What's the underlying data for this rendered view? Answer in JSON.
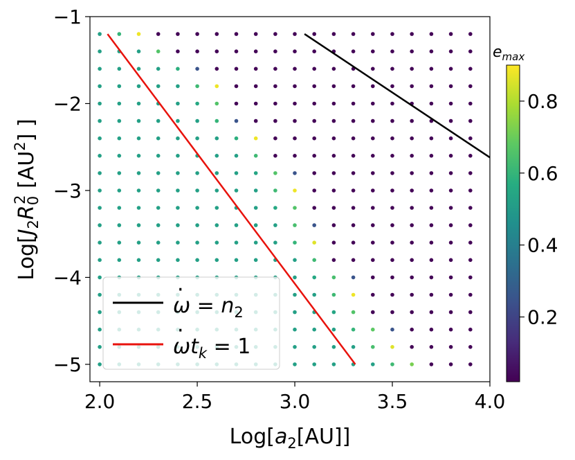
{
  "chart_data": {
    "type": "scatter",
    "xlabel_prefix": "Log[",
    "xlabel_var": "a",
    "xlabel_sub": "2",
    "xlabel_suffix": "[AU]]",
    "ylabel_prefix": "Log[",
    "ylabel_var": "J",
    "ylabel_sub": "2",
    "ylabel_var2": "R",
    "ylabel_sub2": "0",
    "ylabel_sup2": "2",
    "ylabel_mid": " [AU",
    "ylabel_sup": "2",
    "ylabel_suffix": "] ]",
    "xlim": [
      1.95,
      4.0
    ],
    "ylim": [
      -5.2,
      -1.0
    ],
    "xticks": [
      "2.0",
      "2.5",
      "3.0",
      "3.5",
      "4.0"
    ],
    "xtick_values": [
      2.0,
      2.5,
      3.0,
      3.5,
      4.0
    ],
    "yticks": [
      "−1",
      "−2",
      "−3",
      "−4",
      "−5"
    ],
    "ytick_values": [
      -1,
      -2,
      -3,
      -4,
      -5
    ],
    "grid": false,
    "colorbar": {
      "label_var": "e",
      "label_sub": "max",
      "range": [
        0.02,
        0.9
      ],
      "ticks": [
        "0.2",
        "0.4",
        "0.6",
        "0.8"
      ],
      "tick_values": [
        0.2,
        0.4,
        0.6,
        0.8
      ],
      "colormap": "viridis"
    },
    "x_grid": {
      "start": 2.0,
      "step": 0.1,
      "count": 20
    },
    "y_grid": {
      "start": -5.0,
      "step": 0.2,
      "count": 20
    },
    "points_note": "e_max on a 20x20 grid: rows from Log J2R0^2 = -5.0 (first) to -1.2 (last), columns from Log a2 = 2.0 to 3.9",
    "e_max_grid": [
      [
        0.52,
        0.52,
        0.52,
        0.52,
        0.52,
        0.52,
        0.52,
        0.52,
        0.52,
        0.52,
        0.52,
        0.52,
        0.52,
        0.52,
        0.52,
        0.62,
        0.72,
        0.03,
        0.03,
        0.03
      ],
      [
        0.52,
        0.52,
        0.52,
        0.52,
        0.52,
        0.52,
        0.52,
        0.52,
        0.52,
        0.52,
        0.52,
        0.52,
        0.52,
        0.52,
        0.64,
        0.86,
        0.03,
        0.03,
        0.03,
        0.03
      ],
      [
        0.52,
        0.52,
        0.52,
        0.52,
        0.52,
        0.52,
        0.52,
        0.52,
        0.52,
        0.52,
        0.52,
        0.52,
        0.52,
        0.6,
        0.68,
        0.25,
        0.03,
        0.03,
        0.03,
        0.03
      ],
      [
        0.52,
        0.52,
        0.52,
        0.52,
        0.52,
        0.52,
        0.52,
        0.52,
        0.52,
        0.52,
        0.52,
        0.52,
        0.54,
        0.66,
        0.03,
        0.03,
        0.03,
        0.03,
        0.03,
        0.03
      ],
      [
        0.52,
        0.52,
        0.52,
        0.52,
        0.52,
        0.52,
        0.52,
        0.52,
        0.52,
        0.52,
        0.52,
        0.52,
        0.62,
        0.88,
        0.03,
        0.03,
        0.03,
        0.03,
        0.03,
        0.03
      ],
      [
        0.52,
        0.52,
        0.52,
        0.52,
        0.52,
        0.52,
        0.52,
        0.52,
        0.52,
        0.52,
        0.52,
        0.55,
        0.64,
        0.25,
        0.03,
        0.03,
        0.03,
        0.03,
        0.03,
        0.03
      ],
      [
        0.52,
        0.52,
        0.52,
        0.52,
        0.52,
        0.52,
        0.52,
        0.52,
        0.52,
        0.52,
        0.52,
        0.62,
        0.03,
        0.03,
        0.03,
        0.03,
        0.03,
        0.03,
        0.03,
        0.03
      ],
      [
        0.52,
        0.52,
        0.52,
        0.52,
        0.52,
        0.52,
        0.52,
        0.52,
        0.52,
        0.52,
        0.6,
        0.86,
        0.03,
        0.03,
        0.03,
        0.03,
        0.03,
        0.03,
        0.03,
        0.03
      ],
      [
        0.52,
        0.52,
        0.52,
        0.52,
        0.52,
        0.52,
        0.52,
        0.52,
        0.52,
        0.52,
        0.64,
        0.25,
        0.03,
        0.03,
        0.03,
        0.03,
        0.03,
        0.03,
        0.03,
        0.03
      ],
      [
        0.52,
        0.52,
        0.52,
        0.52,
        0.52,
        0.52,
        0.52,
        0.52,
        0.52,
        0.55,
        0.66,
        0.03,
        0.03,
        0.03,
        0.03,
        0.03,
        0.03,
        0.03,
        0.03,
        0.03
      ],
      [
        0.52,
        0.52,
        0.52,
        0.52,
        0.52,
        0.52,
        0.52,
        0.52,
        0.52,
        0.62,
        0.88,
        0.03,
        0.03,
        0.03,
        0.03,
        0.03,
        0.03,
        0.03,
        0.03,
        0.03
      ],
      [
        0.52,
        0.52,
        0.52,
        0.52,
        0.52,
        0.52,
        0.52,
        0.52,
        0.54,
        0.66,
        0.25,
        0.03,
        0.03,
        0.03,
        0.03,
        0.03,
        0.03,
        0.03,
        0.03,
        0.03
      ],
      [
        0.52,
        0.52,
        0.52,
        0.52,
        0.52,
        0.52,
        0.52,
        0.52,
        0.62,
        0.03,
        0.03,
        0.03,
        0.03,
        0.03,
        0.03,
        0.03,
        0.03,
        0.03,
        0.03,
        0.03
      ],
      [
        0.52,
        0.52,
        0.52,
        0.52,
        0.52,
        0.52,
        0.52,
        0.58,
        0.88,
        0.03,
        0.03,
        0.03,
        0.03,
        0.03,
        0.03,
        0.03,
        0.03,
        0.03,
        0.03,
        0.03
      ],
      [
        0.52,
        0.52,
        0.52,
        0.52,
        0.52,
        0.52,
        0.6,
        0.25,
        0.03,
        0.03,
        0.03,
        0.03,
        0.03,
        0.03,
        0.03,
        0.03,
        0.03,
        0.03,
        0.03,
        0.03
      ],
      [
        0.52,
        0.52,
        0.52,
        0.52,
        0.52,
        0.55,
        0.66,
        0.03,
        0.03,
        0.03,
        0.03,
        0.03,
        0.03,
        0.03,
        0.03,
        0.03,
        0.03,
        0.03,
        0.03,
        0.03
      ],
      [
        0.52,
        0.52,
        0.52,
        0.52,
        0.52,
        0.62,
        0.88,
        0.03,
        0.03,
        0.03,
        0.03,
        0.03,
        0.03,
        0.03,
        0.03,
        0.03,
        0.03,
        0.03,
        0.03,
        0.03
      ],
      [
        0.52,
        0.52,
        0.52,
        0.52,
        0.58,
        0.25,
        0.03,
        0.03,
        0.03,
        0.03,
        0.03,
        0.03,
        0.03,
        0.03,
        0.03,
        0.03,
        0.03,
        0.03,
        0.03,
        0.03
      ],
      [
        0.52,
        0.52,
        0.52,
        0.66,
        0.03,
        0.03,
        0.03,
        0.03,
        0.03,
        0.03,
        0.03,
        0.03,
        0.03,
        0.03,
        0.03,
        0.03,
        0.03,
        0.03,
        0.03,
        0.03
      ],
      [
        0.52,
        0.6,
        0.88,
        0.03,
        0.03,
        0.03,
        0.03,
        0.03,
        0.03,
        0.03,
        0.03,
        0.03,
        0.03,
        0.03,
        0.03,
        0.03,
        0.03,
        0.03,
        0.03,
        0.03
      ]
    ],
    "lines": [
      {
        "name_lhs": "ω",
        "name_rhs_var": "n",
        "name_rhs_sub": "2",
        "name_text": "ω̇ = n₂",
        "color": "#000000",
        "x": [
          3.05,
          4.0
        ],
        "y": [
          -1.2,
          -2.62
        ]
      },
      {
        "name_lhs": "ω",
        "name_rhs_var": "t",
        "name_rhs_sub": "k",
        "name_rhs_tail": " = 1",
        "name_text": "ω̇t_k = 1",
        "color": "#e8120c",
        "x": [
          2.04,
          3.31
        ],
        "y": [
          -1.2,
          -5.0
        ]
      }
    ],
    "legend_location": "lower-left"
  }
}
